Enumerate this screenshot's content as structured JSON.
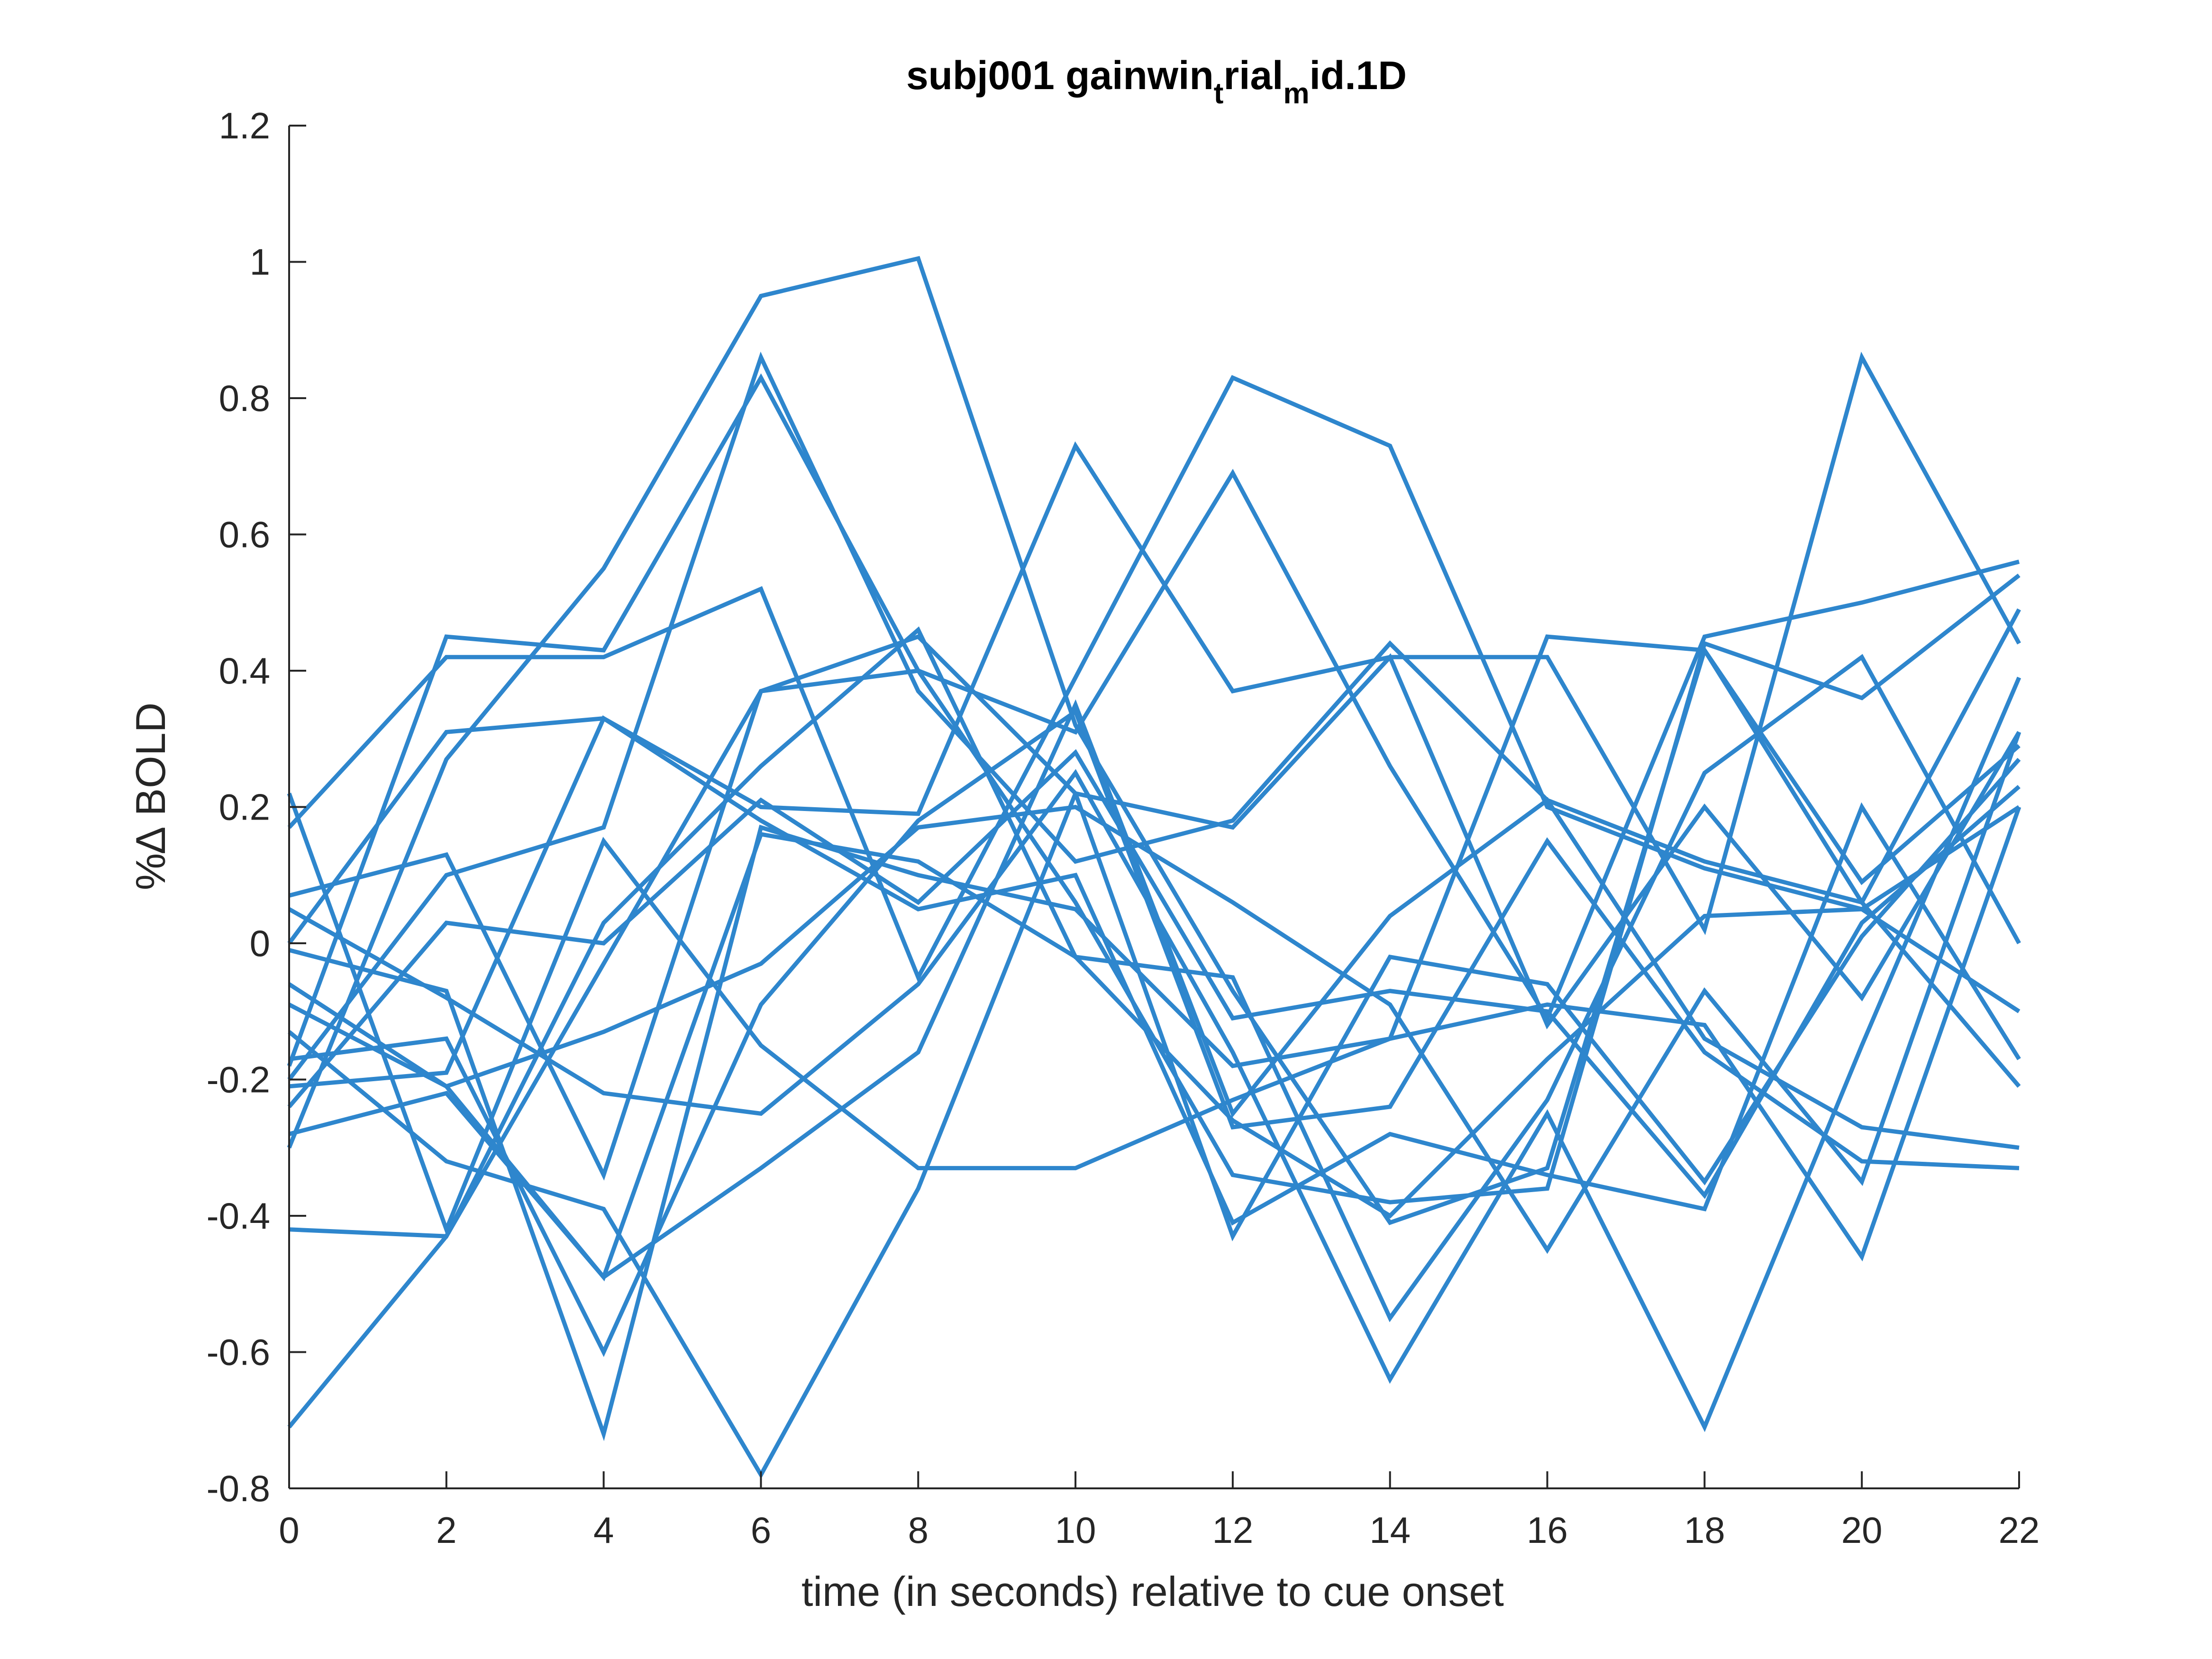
{
  "chart_data": {
    "type": "line",
    "title": {
      "parts": [
        {
          "text": "subj001 gainwin",
          "sub": false
        },
        {
          "text": "t",
          "sub": true
        },
        {
          "text": "rial",
          "sub": false
        },
        {
          "text": "m",
          "sub": true
        },
        {
          "text": "id.1D",
          "sub": false
        }
      ]
    },
    "xlabel": "time (in seconds) relative to cue onset",
    "ylabel": "%∆ BOLD",
    "xlim": [
      0,
      22
    ],
    "ylim": [
      -0.8,
      1.2
    ],
    "xticks": [
      0,
      2,
      4,
      6,
      8,
      10,
      12,
      14,
      16,
      18,
      20,
      22
    ],
    "yticks": [
      -0.8,
      -0.6,
      -0.4,
      -0.2,
      0,
      0.2,
      0.4,
      0.6,
      0.8,
      1,
      1.2
    ],
    "ytick_labels": [
      "-0.8",
      "-0.6",
      "-0.4",
      "-0.2",
      "0",
      "0.2",
      "0.4",
      "0.6",
      "0.8",
      "1",
      "1.2"
    ],
    "line_color": "#2e86cd",
    "grid": false,
    "x": [
      0,
      2,
      4,
      6,
      8,
      10,
      12,
      14,
      16,
      18,
      20,
      22
    ],
    "series": [
      {
        "values": [
          0.17,
          0.42,
          0.42,
          0.52,
          -0.05,
          0.39,
          0.83,
          0.73,
          0.2,
          0.11,
          0.05,
          0.2
        ]
      },
      {
        "values": [
          -0.18,
          0.45,
          0.43,
          0.83,
          0.4,
          0.31,
          0.69,
          0.26,
          -0.11,
          0.45,
          0.5,
          0.56
        ]
      },
      {
        "values": [
          0.0,
          0.31,
          0.33,
          0.2,
          0.19,
          0.73,
          0.37,
          0.42,
          0.42,
          0.02,
          0.86,
          0.44
        ]
      },
      {
        "values": [
          -0.3,
          0.27,
          0.55,
          0.95,
          1.005,
          0.32,
          -0.07,
          -0.41,
          -0.33,
          0.43,
          0.09,
          0.29
        ]
      },
      {
        "values": [
          -0.2,
          0.1,
          0.17,
          0.86,
          0.37,
          0.12,
          0.18,
          0.44,
          0.21,
          0.12,
          0.06,
          0.49
        ]
      },
      {
        "values": [
          -0.42,
          -0.43,
          -0.03,
          0.37,
          0.4,
          0.06,
          -0.34,
          -0.38,
          -0.36,
          0.44,
          0.36,
          0.54
        ]
      },
      {
        "values": [
          0.05,
          -0.08,
          -0.22,
          -0.25,
          -0.06,
          0.25,
          -0.16,
          -0.64,
          -0.25,
          -0.71,
          -0.15,
          0.39
        ]
      },
      {
        "values": [
          -0.71,
          -0.43,
          0.03,
          0.26,
          0.46,
          -0.02,
          -0.05,
          -0.55,
          -0.23,
          0.25,
          0.42,
          0.0
        ]
      },
      {
        "values": [
          -0.28,
          -0.22,
          -0.49,
          -0.33,
          -0.16,
          0.35,
          -0.25,
          0.04,
          0.21,
          -0.14,
          -0.27,
          -0.3
        ]
      },
      {
        "values": [
          0.22,
          -0.42,
          0.15,
          -0.15,
          -0.33,
          -0.33,
          -0.23,
          -0.14,
          -0.09,
          -0.12,
          -0.46,
          0.2
        ]
      },
      {
        "values": [
          -0.21,
          -0.19,
          0.33,
          0.18,
          0.05,
          0.1,
          -0.41,
          -0.28,
          -0.34,
          -0.39,
          0.2,
          -0.17
        ]
      },
      {
        "values": [
          -0.17,
          -0.14,
          -0.6,
          -0.09,
          0.18,
          0.34,
          -0.27,
          -0.24,
          0.15,
          -0.16,
          -0.32,
          -0.33
        ]
      },
      {
        "values": [
          -0.13,
          -0.32,
          -0.39,
          -0.78,
          -0.36,
          0.22,
          0.17,
          0.42,
          -0.12,
          0.2,
          -0.08,
          0.31
        ]
      },
      {
        "values": [
          -0.01,
          -0.07,
          -0.72,
          0.17,
          0.1,
          0.05,
          -0.18,
          -0.14,
          0.45,
          0.43,
          0.06,
          -0.21
        ]
      },
      {
        "values": [
          0.07,
          0.13,
          -0.34,
          0.37,
          0.45,
          0.22,
          -0.43,
          -0.02,
          -0.06,
          -0.35,
          0.01,
          0.27
        ]
      },
      {
        "values": [
          -0.24,
          0.03,
          0.0,
          0.21,
          0.06,
          0.28,
          -0.11,
          -0.07,
          -0.1,
          -0.37,
          0.03,
          0.23
        ]
      },
      {
        "values": [
          -0.06,
          -0.21,
          -0.13,
          -0.03,
          0.17,
          0.2,
          0.06,
          -0.09,
          -0.45,
          -0.07,
          -0.35,
          0.31
        ]
      },
      {
        "values": [
          -0.09,
          -0.21,
          -0.49,
          0.16,
          0.12,
          -0.02,
          -0.26,
          -0.4,
          -0.17,
          0.04,
          0.05,
          -0.1
        ]
      }
    ]
  }
}
